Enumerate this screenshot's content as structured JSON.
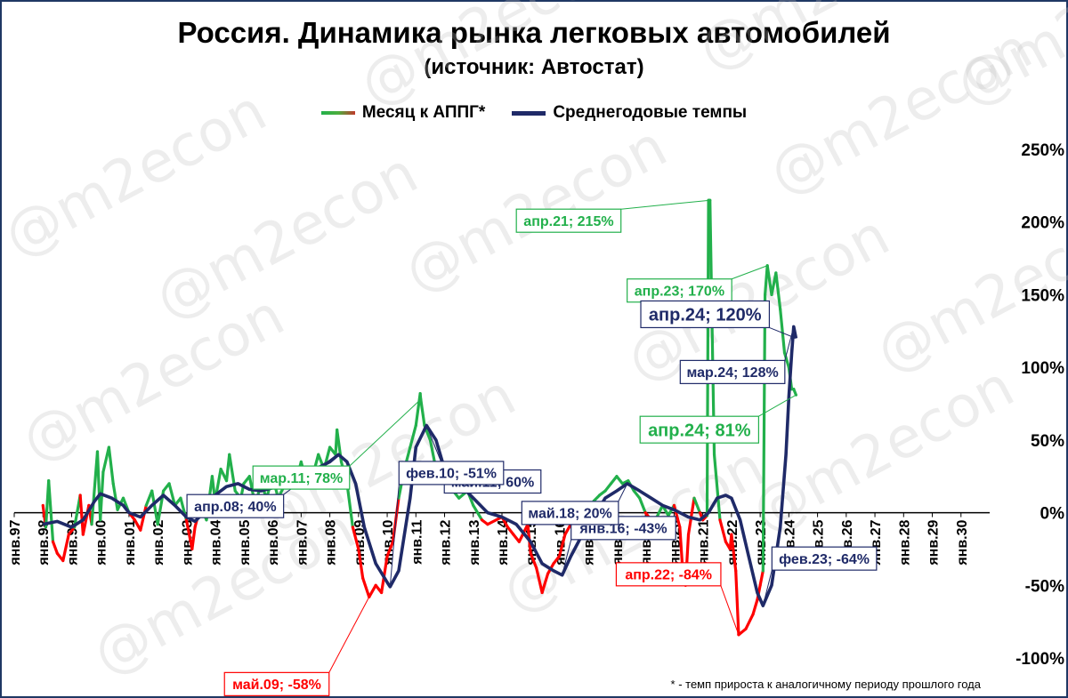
{
  "title": "Россия. Динамика рынка легковых автомобилей",
  "subtitle": "(источник: Автостат)",
  "footnote": "* - темп прироста к аналогичному периоду прошлого года",
  "watermark": "@m2econ",
  "legend": [
    {
      "label": "Месяц к АППГ*",
      "color": "#22b04b"
    },
    {
      "label": "Среднегодовые темпы",
      "color": "#1f2a68"
    }
  ],
  "colors": {
    "monthly_positive": "#22b04b",
    "monthly_negative": "#ff0000",
    "average": "#1f2a68",
    "axis": "#000000"
  },
  "chart_data": {
    "type": "line",
    "title": "Россия. Динамика рынка легковых автомобилей",
    "subtitle": "(источник: Автостат)",
    "xlabel": "",
    "ylabel": "",
    "x_range": [
      1997.0,
      2031.0
    ],
    "ylim": [
      -100,
      250
    ],
    "y_ticks": [
      -100,
      -50,
      0,
      50,
      100,
      150,
      200,
      250
    ],
    "y_tick_labels": [
      "-100%",
      "-50%",
      "0%",
      "50%",
      "100%",
      "150%",
      "200%",
      "250%"
    ],
    "x_ticks": [
      "янв.97",
      "янв.98",
      "янв.99",
      "янв.00",
      "янв.01",
      "янв.02",
      "янв.03",
      "янв.04",
      "янв.05",
      "янв.06",
      "янв.07",
      "янв.08",
      "янв.09",
      "янв.10",
      "янв.11",
      "янв.12",
      "янв.13",
      "янв.14",
      "янв.15",
      "янв.16",
      "янв.17",
      "янв.18",
      "янв.19",
      "янв.20",
      "янв.21",
      "янв.22",
      "янв.23",
      "янв.24",
      "янв.25",
      "янв.26",
      "янв.27",
      "янв.28",
      "янв.29",
      "янв.30"
    ],
    "grid": false,
    "legend_position": "top",
    "series": [
      {
        "name": "Месяц к АППГ*",
        "points": [
          [
            1998.0,
            5
          ],
          [
            1998.1,
            -10
          ],
          [
            1998.2,
            22
          ],
          [
            1998.35,
            -20
          ],
          [
            1998.5,
            -28
          ],
          [
            1998.7,
            -33
          ],
          [
            1998.9,
            -15
          ],
          [
            1999.1,
            -10
          ],
          [
            1999.3,
            12
          ],
          [
            1999.4,
            -15
          ],
          [
            1999.6,
            5
          ],
          [
            1999.7,
            -8
          ],
          [
            1999.9,
            42
          ],
          [
            2000.0,
            -5
          ],
          [
            2000.1,
            28
          ],
          [
            2000.3,
            45
          ],
          [
            2000.45,
            20
          ],
          [
            2000.6,
            2
          ],
          [
            2000.8,
            10
          ],
          [
            2001.0,
            0
          ],
          [
            2001.2,
            -5
          ],
          [
            2001.4,
            -12
          ],
          [
            2001.6,
            5
          ],
          [
            2001.8,
            15
          ],
          [
            2002.0,
            -8
          ],
          [
            2002.2,
            15
          ],
          [
            2002.4,
            20
          ],
          [
            2002.6,
            5
          ],
          [
            2002.8,
            10
          ],
          [
            2003.0,
            -5
          ],
          [
            2003.2,
            -25
          ],
          [
            2003.3,
            -10
          ],
          [
            2003.5,
            5
          ],
          [
            2003.7,
            -5
          ],
          [
            2003.9,
            25
          ],
          [
            2004.0,
            8
          ],
          [
            2004.2,
            30
          ],
          [
            2004.4,
            22
          ],
          [
            2004.5,
            40
          ],
          [
            2004.7,
            15
          ],
          [
            2004.9,
            10
          ],
          [
            2005.0,
            20
          ],
          [
            2005.2,
            25
          ],
          [
            2005.4,
            5
          ],
          [
            2005.6,
            20
          ],
          [
            2005.8,
            10
          ],
          [
            2006.0,
            25
          ],
          [
            2006.2,
            10
          ],
          [
            2006.4,
            18
          ],
          [
            2006.6,
            30
          ],
          [
            2006.8,
            20
          ],
          [
            2007.0,
            35
          ],
          [
            2007.2,
            20
          ],
          [
            2007.4,
            25
          ],
          [
            2007.6,
            40
          ],
          [
            2007.8,
            30
          ],
          [
            2008.0,
            45
          ],
          [
            2008.2,
            40
          ],
          [
            2008.25,
            57
          ],
          [
            2008.4,
            35
          ],
          [
            2008.6,
            20
          ],
          [
            2008.8,
            -10
          ],
          [
            2009.0,
            -25
          ],
          [
            2009.15,
            -45
          ],
          [
            2009.37,
            -58
          ],
          [
            2009.6,
            -50
          ],
          [
            2009.8,
            -55
          ],
          [
            2010.0,
            -30
          ],
          [
            2010.2,
            -20
          ],
          [
            2010.4,
            10
          ],
          [
            2010.6,
            30
          ],
          [
            2010.8,
            45
          ],
          [
            2011.0,
            60
          ],
          [
            2011.15,
            82
          ],
          [
            2011.17,
            78
          ],
          [
            2011.3,
            60
          ],
          [
            2011.5,
            50
          ],
          [
            2011.7,
            30
          ],
          [
            2011.9,
            20
          ],
          [
            2012.1,
            25
          ],
          [
            2012.3,
            15
          ],
          [
            2012.5,
            10
          ],
          [
            2012.8,
            15
          ],
          [
            2013.0,
            5
          ],
          [
            2013.3,
            -5
          ],
          [
            2013.5,
            -8
          ],
          [
            2013.8,
            -5
          ],
          [
            2014.0,
            -3
          ],
          [
            2014.2,
            -10
          ],
          [
            2014.4,
            -15
          ],
          [
            2014.6,
            -20
          ],
          [
            2014.9,
            -8
          ],
          [
            2015.0,
            -28
          ],
          [
            2015.2,
            -38
          ],
          [
            2015.4,
            -55
          ],
          [
            2015.6,
            -42
          ],
          [
            2015.8,
            -35
          ],
          [
            2016.0,
            -30
          ],
          [
            2016.2,
            -15
          ],
          [
            2016.4,
            -8
          ],
          [
            2016.6,
            -10
          ],
          [
            2016.8,
            -5
          ],
          [
            2017.0,
            -5
          ],
          [
            2017.2,
            8
          ],
          [
            2017.4,
            12
          ],
          [
            2017.6,
            15
          ],
          [
            2017.8,
            20
          ],
          [
            2018.0,
            25
          ],
          [
            2018.2,
            20
          ],
          [
            2018.4,
            22
          ],
          [
            2018.6,
            15
          ],
          [
            2018.8,
            10
          ],
          [
            2019.0,
            0
          ],
          [
            2019.2,
            -5
          ],
          [
            2019.4,
            -3
          ],
          [
            2019.6,
            5
          ],
          [
            2019.8,
            -2
          ],
          [
            2020.0,
            5
          ],
          [
            2020.2,
            -10
          ],
          [
            2020.3,
            -40
          ],
          [
            2020.4,
            -50
          ],
          [
            2020.5,
            -15
          ],
          [
            2020.7,
            10
          ],
          [
            2020.9,
            0
          ],
          [
            2021.0,
            -5
          ],
          [
            2021.15,
            -2
          ],
          [
            2021.2,
            215
          ],
          [
            2021.25,
            215
          ],
          [
            2021.4,
            40
          ],
          [
            2021.6,
            -5
          ],
          [
            2021.8,
            -20
          ],
          [
            2021.95,
            -25
          ],
          [
            2022.0,
            -15
          ],
          [
            2022.15,
            -40
          ],
          [
            2022.25,
            -84
          ],
          [
            2022.5,
            -80
          ],
          [
            2022.75,
            -70
          ],
          [
            2022.9,
            -60
          ],
          [
            2023.0,
            -50
          ],
          [
            2023.1,
            -40
          ],
          [
            2023.17,
            150
          ],
          [
            2023.25,
            170
          ],
          [
            2023.4,
            150
          ],
          [
            2023.55,
            165
          ],
          [
            2023.7,
            140
          ],
          [
            2023.85,
            110
          ],
          [
            2024.0,
            100
          ],
          [
            2024.1,
            85
          ],
          [
            2024.17,
            85
          ],
          [
            2024.25,
            81
          ]
        ]
      },
      {
        "name": "Среднегодовые темпы",
        "points": [
          [
            1998.0,
            -8
          ],
          [
            1998.5,
            -6
          ],
          [
            1999.0,
            -10
          ],
          [
            1999.4,
            -5
          ],
          [
            1999.8,
            8
          ],
          [
            2000.0,
            13
          ],
          [
            2000.4,
            10
          ],
          [
            2000.8,
            5
          ],
          [
            2001.0,
            0
          ],
          [
            2001.4,
            -3
          ],
          [
            2001.8,
            5
          ],
          [
            2002.2,
            12
          ],
          [
            2002.6,
            5
          ],
          [
            2003.0,
            -3
          ],
          [
            2003.3,
            -6
          ],
          [
            2003.7,
            2
          ],
          [
            2004.0,
            12
          ],
          [
            2004.4,
            18
          ],
          [
            2004.8,
            20
          ],
          [
            2005.2,
            16
          ],
          [
            2005.6,
            15
          ],
          [
            2006.0,
            17
          ],
          [
            2006.5,
            20
          ],
          [
            2007.0,
            25
          ],
          [
            2007.5,
            30
          ],
          [
            2008.0,
            35
          ],
          [
            2008.3,
            40
          ],
          [
            2008.6,
            35
          ],
          [
            2008.9,
            20
          ],
          [
            2009.2,
            -10
          ],
          [
            2009.6,
            -35
          ],
          [
            2010.0,
            -48
          ],
          [
            2010.1,
            -51
          ],
          [
            2010.4,
            -40
          ],
          [
            2010.8,
            10
          ],
          [
            2011.0,
            45
          ],
          [
            2011.37,
            60
          ],
          [
            2011.7,
            50
          ],
          [
            2012.0,
            30
          ],
          [
            2012.5,
            20
          ],
          [
            2013.0,
            10
          ],
          [
            2013.5,
            0
          ],
          [
            2014.0,
            -3
          ],
          [
            2014.5,
            -8
          ],
          [
            2015.0,
            -20
          ],
          [
            2015.4,
            -35
          ],
          [
            2015.8,
            -40
          ],
          [
            2016.1,
            -43
          ],
          [
            2016.4,
            -30
          ],
          [
            2016.8,
            -15
          ],
          [
            2017.2,
            -3
          ],
          [
            2017.6,
            10
          ],
          [
            2018.0,
            15
          ],
          [
            2018.37,
            20
          ],
          [
            2018.8,
            15
          ],
          [
            2019.2,
            10
          ],
          [
            2019.6,
            5
          ],
          [
            2020.0,
            2
          ],
          [
            2020.5,
            -3
          ],
          [
            2020.9,
            -5
          ],
          [
            2021.2,
            0
          ],
          [
            2021.5,
            10
          ],
          [
            2021.8,
            12
          ],
          [
            2022.0,
            10
          ],
          [
            2022.3,
            -5
          ],
          [
            2022.6,
            -30
          ],
          [
            2022.9,
            -55
          ],
          [
            2023.1,
            -64
          ],
          [
            2023.4,
            -50
          ],
          [
            2023.7,
            -10
          ],
          [
            2023.9,
            40
          ],
          [
            2024.0,
            80
          ],
          [
            2024.1,
            110
          ],
          [
            2024.17,
            128
          ],
          [
            2024.25,
            120
          ]
        ]
      }
    ],
    "annotations": [
      {
        "text": "апр.08; 40%",
        "x": 2008.25,
        "y": 40,
        "series": "avg"
      },
      {
        "text": "май.09; -58%",
        "x": 2009.37,
        "y": -58,
        "series": "monthly"
      },
      {
        "text": "мар.11; 78%",
        "x": 2011.17,
        "y": 78,
        "series": "monthly"
      },
      {
        "text": "май.11; 60%",
        "x": 2011.37,
        "y": 60,
        "series": "avg"
      },
      {
        "text": "фев.10; -51%",
        "x": 2010.1,
        "y": -51,
        "series": "avg"
      },
      {
        "text": "янв.16; -43%",
        "x": 2016.1,
        "y": -43,
        "series": "avg"
      },
      {
        "text": "май.18; 20%",
        "x": 2018.37,
        "y": 20,
        "series": "avg"
      },
      {
        "text": "апр.21; 215%",
        "x": 2021.25,
        "y": 215,
        "series": "monthly"
      },
      {
        "text": "апр.22; -84%",
        "x": 2022.25,
        "y": -84,
        "series": "monthly"
      },
      {
        "text": "апр.23; 170%",
        "x": 2023.25,
        "y": 170,
        "series": "monthly"
      },
      {
        "text": "фев.23; -64%",
        "x": 2023.1,
        "y": -64,
        "series": "avg"
      },
      {
        "text": "мар.24; 128%",
        "x": 2024.17,
        "y": 128,
        "series": "avg"
      },
      {
        "text": "апр.24; 120%",
        "x": 2024.25,
        "y": 120,
        "series": "avg"
      },
      {
        "text": "апр.24; 81%",
        "x": 2024.25,
        "y": 81,
        "series": "monthly"
      }
    ]
  }
}
